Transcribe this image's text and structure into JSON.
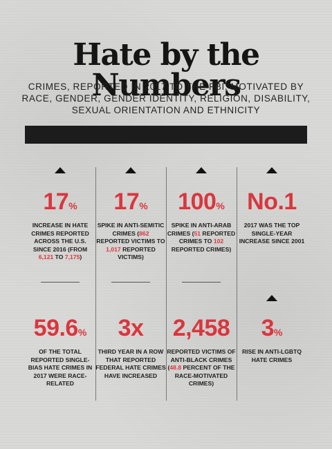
{
  "title": "Hate by the Numbers",
  "subtitle": "CRIMES, REPORTED IN 2017 TO THE FBI, MOTIVATED BY RACE, GENDER, GENDER IDENTITY, RELIGION, DISABILITY, SEXUAL ORIENTATION AND ETHNICITY",
  "colors": {
    "accent": "#d9363e",
    "bar": "#1c1c1c",
    "background": "#d9d9d7"
  },
  "stats": [
    {
      "value": "17",
      "unit": "%",
      "text": [
        "INCREASE IN HATE CRIMES REPORTED ACROSS THE U.S. SINCE 2016 (FROM ",
        "6,121",
        " TO ",
        "7,175",
        ")"
      ]
    },
    {
      "value": "17",
      "unit": "%",
      "text": [
        "SPIKE IN ANTI-SEMITIC CRIMES (",
        "862",
        " REPORTED VICTIMS TO ",
        "1,017",
        " REPORTED VICTIMS)"
      ]
    },
    {
      "value": "100",
      "unit": "%",
      "text": [
        "SPIKE IN ANTI-ARAB CRIMES (",
        "51",
        " REPORTED CRIMES TO ",
        "102",
        " REPORTED CRIMES)"
      ]
    },
    {
      "value": "No.1",
      "unit": "",
      "text": [
        "2017 WAS THE TOP SINGLE-YEAR INCREASE SINCE 2001"
      ]
    },
    {
      "value": "59.6",
      "unit": "%",
      "text": [
        "OF THE TOTAL REPORTED SINGLE-BIAS HATE CRIMES IN 2017 WERE RACE-RELATED"
      ]
    },
    {
      "value": "3x",
      "unit": "",
      "text": [
        "THIRD YEAR IN A ROW THAT REPORTED FEDERAL HATE CRIMES HAVE INCREASED"
      ]
    },
    {
      "value": "2,458",
      "unit": "",
      "text": [
        "REPORTED VICTIMS OF ANTI-BLACK CRIMES (",
        "48.8",
        " PERCENT OF THE RACE-MOTIVATED CRIMES)"
      ]
    },
    {
      "value": "3",
      "unit": "%",
      "text": [
        "RISE IN ANTI-LGBTQ HATE CRIMES"
      ]
    }
  ]
}
